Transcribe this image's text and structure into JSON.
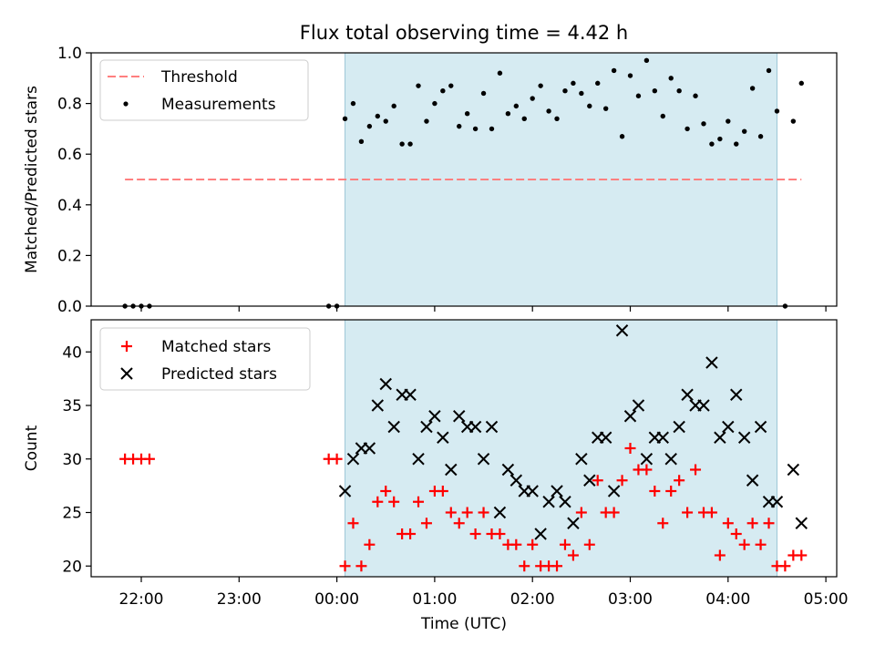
{
  "chart_data": [
    {
      "type": "scatter",
      "title": "Flux total observing time = 4.42 h",
      "ylabel": "Matched/Predicted stars",
      "ylim": [
        0,
        1.0
      ],
      "yticks": [
        "0.0",
        "0.2",
        "0.4",
        "0.6",
        "0.8",
        "1.0"
      ],
      "legend_position": "top-left",
      "shaded_region": {
        "start": "00:05",
        "end": "04:30",
        "color": "#add8e6"
      },
      "threshold": {
        "name": "Threshold",
        "value": 0.5,
        "x_start": "21:50",
        "x_end": "04:45",
        "color": "#ff7f7f",
        "style": "dashed"
      },
      "series": [
        {
          "name": "Measurements",
          "marker": "dot",
          "color": "#000000",
          "points": [
            [
              "21:50",
              0.0
            ],
            [
              "21:55",
              0.0
            ],
            [
              "22:00",
              0.0
            ],
            [
              "22:05",
              0.0
            ],
            [
              "23:55",
              0.0
            ],
            [
              "00:00",
              0.0
            ],
            [
              "00:05",
              0.74
            ],
            [
              "00:10",
              0.8
            ],
            [
              "00:15",
              0.65
            ],
            [
              "00:20",
              0.71
            ],
            [
              "00:25",
              0.75
            ],
            [
              "00:30",
              0.73
            ],
            [
              "00:35",
              0.79
            ],
            [
              "00:40",
              0.64
            ],
            [
              "00:45",
              0.64
            ],
            [
              "00:50",
              0.87
            ],
            [
              "00:55",
              0.73
            ],
            [
              "01:00",
              0.8
            ],
            [
              "01:05",
              0.85
            ],
            [
              "01:10",
              0.87
            ],
            [
              "01:15",
              0.71
            ],
            [
              "01:20",
              0.76
            ],
            [
              "01:25",
              0.7
            ],
            [
              "01:30",
              0.84
            ],
            [
              "01:35",
              0.7
            ],
            [
              "01:40",
              0.92
            ],
            [
              "01:45",
              0.76
            ],
            [
              "01:50",
              0.79
            ],
            [
              "01:55",
              0.74
            ],
            [
              "02:00",
              0.82
            ],
            [
              "02:05",
              0.87
            ],
            [
              "02:10",
              0.77
            ],
            [
              "02:15",
              0.74
            ],
            [
              "02:20",
              0.85
            ],
            [
              "02:25",
              0.88
            ],
            [
              "02:30",
              0.84
            ],
            [
              "02:35",
              0.79
            ],
            [
              "02:40",
              0.88
            ],
            [
              "02:45",
              0.78
            ],
            [
              "02:50",
              0.93
            ],
            [
              "02:55",
              0.67
            ],
            [
              "03:00",
              0.91
            ],
            [
              "03:05",
              0.83
            ],
            [
              "03:10",
              0.97
            ],
            [
              "03:15",
              0.85
            ],
            [
              "03:20",
              0.75
            ],
            [
              "03:25",
              0.9
            ],
            [
              "03:30",
              0.85
            ],
            [
              "03:35",
              0.7
            ],
            [
              "03:40",
              0.83
            ],
            [
              "03:45",
              0.72
            ],
            [
              "03:50",
              0.64
            ],
            [
              "03:55",
              0.66
            ],
            [
              "04:00",
              0.73
            ],
            [
              "04:05",
              0.64
            ],
            [
              "04:10",
              0.69
            ],
            [
              "04:15",
              0.86
            ],
            [
              "04:20",
              0.67
            ],
            [
              "04:25",
              0.93
            ],
            [
              "04:30",
              0.77
            ],
            [
              "04:35",
              0.0
            ],
            [
              "04:40",
              0.73
            ],
            [
              "04:45",
              0.88
            ]
          ]
        }
      ]
    },
    {
      "type": "scatter",
      "xlabel": "Time (UTC)",
      "ylabel": "Count",
      "ylim": [
        19,
        43
      ],
      "yticks": [
        "20",
        "25",
        "30",
        "35",
        "40"
      ],
      "xticks": [
        "22:00",
        "23:00",
        "00:00",
        "01:00",
        "02:00",
        "03:00",
        "04:00",
        "05:00"
      ],
      "legend_position": "top-left",
      "shaded_region": {
        "start": "00:05",
        "end": "04:30",
        "color": "#add8e6"
      },
      "series": [
        {
          "name": "Matched stars",
          "marker": "plus",
          "color": "#ff0000",
          "points": [
            [
              "21:50",
              30
            ],
            [
              "21:55",
              30
            ],
            [
              "22:00",
              30
            ],
            [
              "22:05",
              30
            ],
            [
              "23:55",
              30
            ],
            [
              "00:00",
              30
            ],
            [
              "00:05",
              20
            ],
            [
              "00:10",
              24
            ],
            [
              "00:15",
              20
            ],
            [
              "00:20",
              22
            ],
            [
              "00:25",
              26
            ],
            [
              "00:30",
              27
            ],
            [
              "00:35",
              26
            ],
            [
              "00:40",
              23
            ],
            [
              "00:45",
              23
            ],
            [
              "00:50",
              26
            ],
            [
              "00:55",
              24
            ],
            [
              "01:00",
              27
            ],
            [
              "01:05",
              27
            ],
            [
              "01:10",
              25
            ],
            [
              "01:15",
              24
            ],
            [
              "01:20",
              25
            ],
            [
              "01:25",
              23
            ],
            [
              "01:30",
              25
            ],
            [
              "01:35",
              23
            ],
            [
              "01:40",
              23
            ],
            [
              "01:45",
              22
            ],
            [
              "01:50",
              22
            ],
            [
              "01:55",
              20
            ],
            [
              "02:00",
              22
            ],
            [
              "02:05",
              20
            ],
            [
              "02:10",
              20
            ],
            [
              "02:15",
              20
            ],
            [
              "02:20",
              22
            ],
            [
              "02:25",
              21
            ],
            [
              "02:30",
              25
            ],
            [
              "02:35",
              22
            ],
            [
              "02:40",
              28
            ],
            [
              "02:45",
              25
            ],
            [
              "02:50",
              25
            ],
            [
              "02:55",
              28
            ],
            [
              "03:00",
              31
            ],
            [
              "03:05",
              29
            ],
            [
              "03:10",
              29
            ],
            [
              "03:15",
              27
            ],
            [
              "03:20",
              24
            ],
            [
              "03:25",
              27
            ],
            [
              "03:30",
              28
            ],
            [
              "03:35",
              25
            ],
            [
              "03:40",
              29
            ],
            [
              "03:45",
              25
            ],
            [
              "03:50",
              25
            ],
            [
              "03:55",
              21
            ],
            [
              "04:00",
              24
            ],
            [
              "04:05",
              23
            ],
            [
              "04:10",
              22
            ],
            [
              "04:15",
              24
            ],
            [
              "04:20",
              22
            ],
            [
              "04:25",
              24
            ],
            [
              "04:30",
              20
            ],
            [
              "04:35",
              20
            ],
            [
              "04:40",
              21
            ],
            [
              "04:45",
              21
            ]
          ]
        },
        {
          "name": "Predicted stars",
          "marker": "x",
          "color": "#000000",
          "points": [
            [
              "00:05",
              27
            ],
            [
              "00:10",
              30
            ],
            [
              "00:15",
              31
            ],
            [
              "00:20",
              31
            ],
            [
              "00:25",
              35
            ],
            [
              "00:30",
              37
            ],
            [
              "00:35",
              33
            ],
            [
              "00:40",
              36
            ],
            [
              "00:45",
              36
            ],
            [
              "00:50",
              30
            ],
            [
              "00:55",
              33
            ],
            [
              "01:00",
              34
            ],
            [
              "01:05",
              32
            ],
            [
              "01:10",
              29
            ],
            [
              "01:15",
              34
            ],
            [
              "01:20",
              33
            ],
            [
              "01:25",
              33
            ],
            [
              "01:30",
              30
            ],
            [
              "01:35",
              33
            ],
            [
              "01:40",
              25
            ],
            [
              "01:45",
              29
            ],
            [
              "01:50",
              28
            ],
            [
              "01:55",
              27
            ],
            [
              "02:00",
              27
            ],
            [
              "02:05",
              23
            ],
            [
              "02:10",
              26
            ],
            [
              "02:15",
              27
            ],
            [
              "02:20",
              26
            ],
            [
              "02:25",
              24
            ],
            [
              "02:30",
              30
            ],
            [
              "02:35",
              28
            ],
            [
              "02:40",
              32
            ],
            [
              "02:45",
              32
            ],
            [
              "02:50",
              27
            ],
            [
              "02:55",
              42
            ],
            [
              "03:00",
              34
            ],
            [
              "03:05",
              35
            ],
            [
              "03:10",
              30
            ],
            [
              "03:15",
              32
            ],
            [
              "03:20",
              32
            ],
            [
              "03:25",
              30
            ],
            [
              "03:30",
              33
            ],
            [
              "03:35",
              36
            ],
            [
              "03:40",
              35
            ],
            [
              "03:45",
              35
            ],
            [
              "03:50",
              39
            ],
            [
              "03:55",
              32
            ],
            [
              "04:00",
              33
            ],
            [
              "04:05",
              36
            ],
            [
              "04:10",
              32
            ],
            [
              "04:15",
              28
            ],
            [
              "04:20",
              33
            ],
            [
              "04:25",
              26
            ],
            [
              "04:30",
              26
            ],
            [
              "04:40",
              29
            ],
            [
              "04:45",
              24
            ]
          ]
        }
      ]
    }
  ]
}
